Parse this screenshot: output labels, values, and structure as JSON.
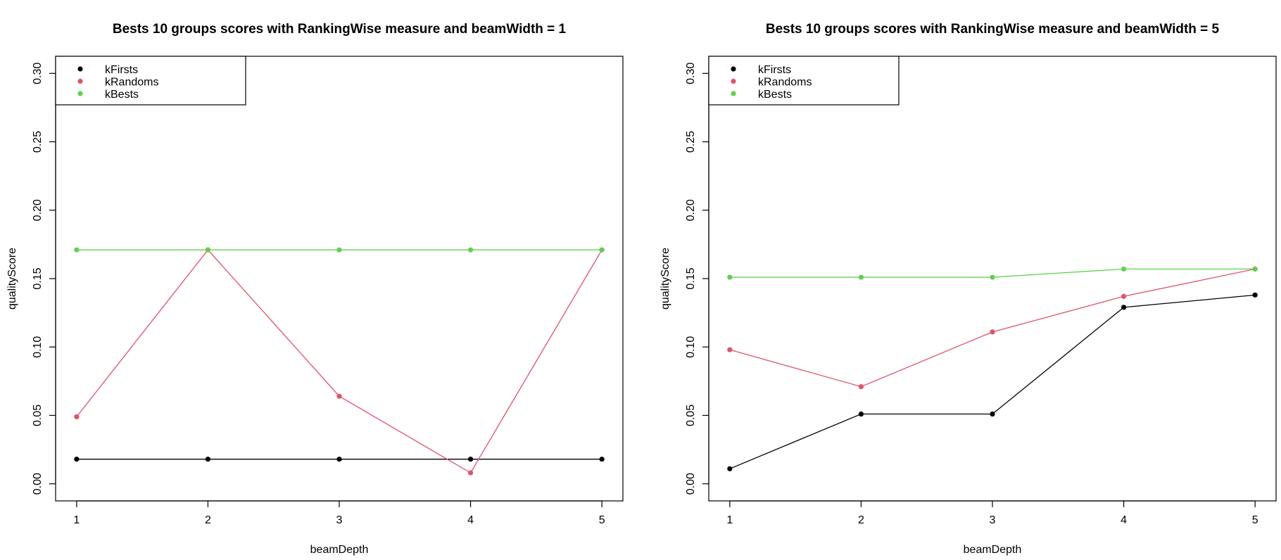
{
  "chart_data": [
    {
      "type": "line",
      "title": "Bests 10 groups scores with RankingWise measure and beamWidth = 1",
      "xlabel": "beamDepth",
      "ylabel": "qualityScore",
      "x": [
        1,
        2,
        3,
        4,
        5
      ],
      "xticks": [
        "1",
        "2",
        "3",
        "4",
        "5"
      ],
      "yticks": [
        "0.00",
        "0.05",
        "0.10",
        "0.15",
        "0.20",
        "0.25",
        "0.30"
      ],
      "ylim": [
        -0.0125,
        0.3125
      ],
      "xlim": [
        0.84,
        5.16
      ],
      "grid": false,
      "legend_position": "top-left",
      "series": [
        {
          "name": "kFirsts",
          "color": "#000000",
          "values": [
            0.018,
            0.018,
            0.018,
            0.018,
            0.018
          ]
        },
        {
          "name": "kRandoms",
          "color": "#DF536B",
          "values": [
            0.049,
            0.171,
            0.064,
            0.008,
            0.171
          ]
        },
        {
          "name": "kBests",
          "color": "#61D04F",
          "values": [
            0.171,
            0.171,
            0.171,
            0.171,
            0.171
          ]
        }
      ]
    },
    {
      "type": "line",
      "title": "Bests 10 groups scores with RankingWise measure and beamWidth = 5",
      "xlabel": "beamDepth",
      "ylabel": "qualityScore",
      "x": [
        1,
        2,
        3,
        4,
        5
      ],
      "xticks": [
        "1",
        "2",
        "3",
        "4",
        "5"
      ],
      "yticks": [
        "0.00",
        "0.05",
        "0.10",
        "0.15",
        "0.20",
        "0.25",
        "0.30"
      ],
      "ylim": [
        -0.0125,
        0.3125
      ],
      "xlim": [
        0.84,
        5.16
      ],
      "grid": false,
      "legend_position": "top-left",
      "series": [
        {
          "name": "kFirsts",
          "color": "#000000",
          "values": [
            0.011,
            0.051,
            0.051,
            0.129,
            0.138
          ]
        },
        {
          "name": "kRandoms",
          "color": "#DF536B",
          "values": [
            0.098,
            0.071,
            0.111,
            0.137,
            0.157
          ]
        },
        {
          "name": "kBests",
          "color": "#61D04F",
          "values": [
            0.151,
            0.151,
            0.151,
            0.157,
            0.157
          ]
        }
      ]
    }
  ]
}
